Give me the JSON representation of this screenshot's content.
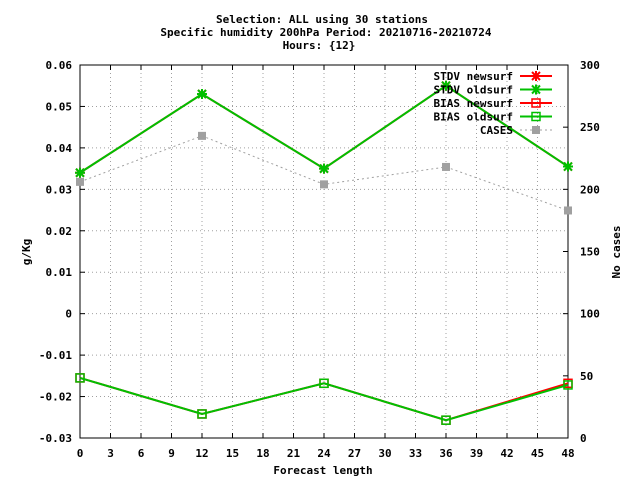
{
  "chart_data": {
    "type": "line",
    "title_lines": [
      "Selection: ALL using    30 stations",
      "Specific humidity 200hPa   Period: 20210716-20210724",
      "Hours: {12}"
    ],
    "xlabel": "Forecast length",
    "ylabel": "g/Kg",
    "y2label": "No cases",
    "x_ticks": [
      0,
      3,
      6,
      9,
      12,
      15,
      18,
      21,
      24,
      27,
      30,
      33,
      36,
      39,
      42,
      45,
      48
    ],
    "xlim": [
      0,
      48
    ],
    "ylim": [
      -0.03,
      0.06
    ],
    "y_ticks": [
      -0.03,
      -0.02,
      -0.01,
      0,
      0.01,
      0.02,
      0.03,
      0.04,
      0.05,
      0.06
    ],
    "y_tick_labels": [
      "-0.03",
      "-0.02",
      "-0.01",
      "0",
      "0.01",
      "0.02",
      "0.03",
      "0.04",
      "0.05",
      "0.06"
    ],
    "y2lim": [
      0,
      300
    ],
    "y2_ticks": [
      0,
      50,
      100,
      150,
      200,
      250,
      300
    ],
    "grid": true,
    "legend_position": "top-right",
    "x": [
      0,
      12,
      24,
      36,
      48
    ],
    "series": [
      {
        "name": "STDV newsurf",
        "axis": "y",
        "color": "#ff0000",
        "marker": "star",
        "dashed": false,
        "values": [
          0.034,
          0.053,
          0.035,
          0.055,
          0.0355
        ]
      },
      {
        "name": "STDV oldsurf",
        "axis": "y",
        "color": "#00c000",
        "marker": "star",
        "dashed": false,
        "values": [
          0.034,
          0.053,
          0.035,
          0.055,
          0.0355
        ]
      },
      {
        "name": "BIAS newsurf",
        "axis": "y",
        "color": "#ff0000",
        "marker": "square",
        "dashed": false,
        "values": [
          -0.0155,
          -0.0242,
          -0.0168,
          -0.0257,
          -0.0168
        ]
      },
      {
        "name": "BIAS oldsurf",
        "axis": "y",
        "color": "#00c000",
        "marker": "square",
        "dashed": false,
        "values": [
          -0.0155,
          -0.0242,
          -0.0168,
          -0.0257,
          -0.0172
        ]
      },
      {
        "name": "CASES",
        "axis": "y2",
        "color": "#a0a0a0",
        "marker": "filled-square",
        "dashed": true,
        "values": [
          206,
          243,
          204,
          218,
          183
        ]
      }
    ]
  }
}
